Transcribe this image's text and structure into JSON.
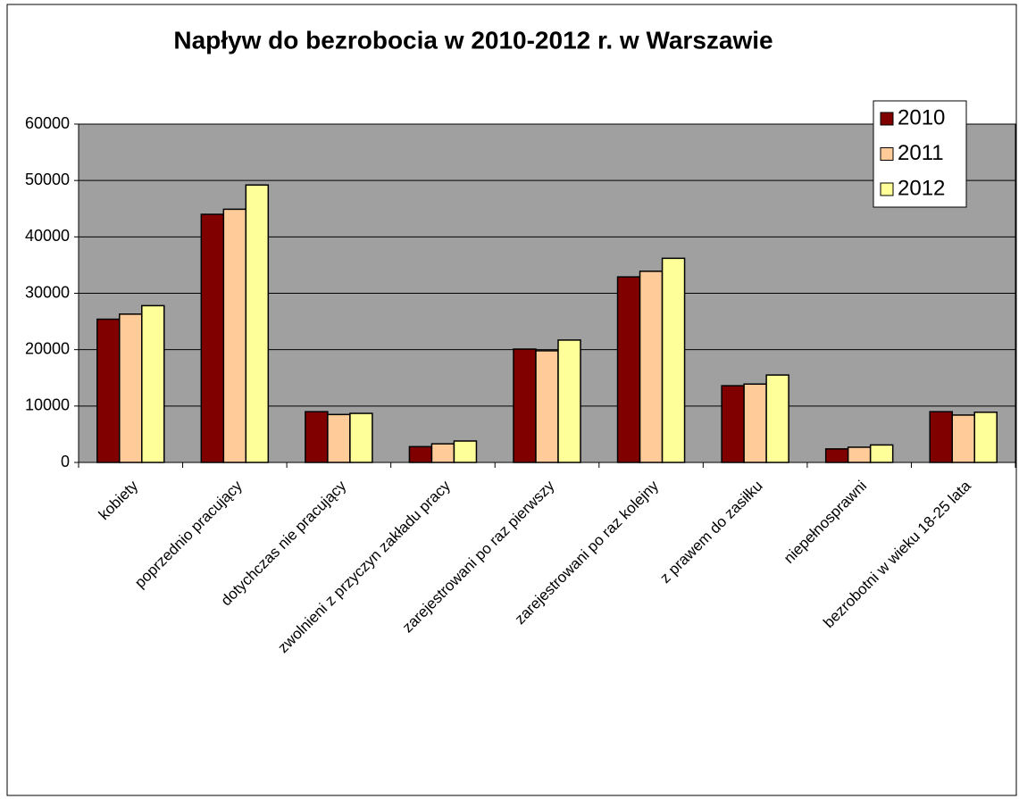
{
  "chart_data": {
    "type": "bar",
    "title": "Napływ do bezrobocia w 2010-2012 r. w Warszawie",
    "categories": [
      "kobiety",
      "poprzednio pracujący",
      "dotychczas nie pracujący",
      "zwolnieni z przyczyn zakładu pracy",
      "zarejestrowani po raz pierwszy",
      "zarejestrowani po raz kolejny",
      "z prawem do zasiłku",
      "niepełnosprawni",
      "bezrobotni w wieku 18-25 lata"
    ],
    "series": [
      {
        "name": "2010",
        "color": "#800000",
        "values": [
          25400,
          44000,
          9000,
          2800,
          20100,
          32900,
          13600,
          2400,
          9000
        ]
      },
      {
        "name": "2011",
        "color": "#ffcc99",
        "values": [
          26300,
          44900,
          8500,
          3300,
          19800,
          33900,
          13900,
          2700,
          8400
        ]
      },
      {
        "name": "2012",
        "color": "#ffff99",
        "values": [
          27800,
          49200,
          8700,
          3800,
          21700,
          36200,
          15500,
          3100,
          8900
        ]
      }
    ],
    "ylim": [
      0,
      60000
    ],
    "yticks": [
      0,
      10000,
      20000,
      30000,
      40000,
      50000,
      60000
    ],
    "grid": true,
    "legend": "top-right",
    "plot_background": "#a0a0a0"
  }
}
